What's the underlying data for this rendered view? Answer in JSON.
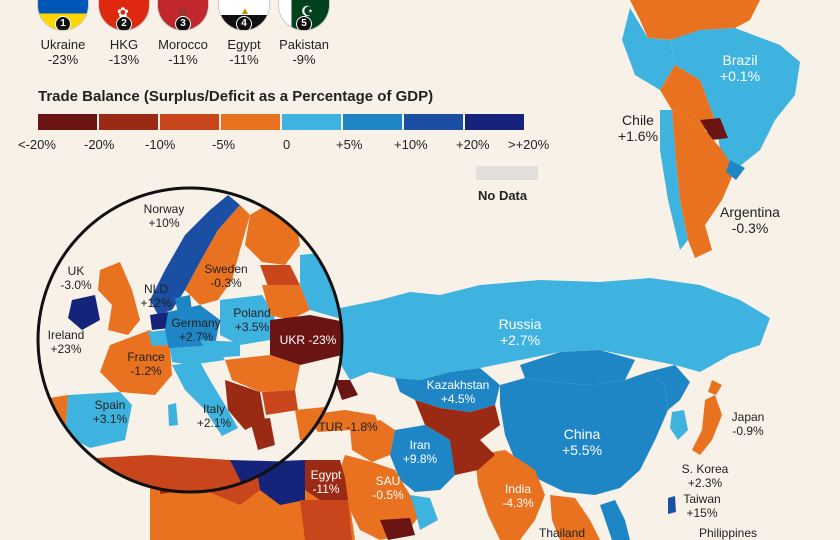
{
  "top_countries": [
    {
      "rank": "1",
      "country": "Ukraine",
      "value": "-23%",
      "flag": "ukraine-flag-icon"
    },
    {
      "rank": "2",
      "country": "HKG",
      "value": "-13%",
      "flag": "hong-kong-flag-icon"
    },
    {
      "rank": "3",
      "country": "Morocco",
      "value": "-11%",
      "flag": "morocco-flag-icon"
    },
    {
      "rank": "4",
      "country": "Egypt",
      "value": "-11%",
      "flag": "egypt-flag-icon"
    },
    {
      "rank": "5",
      "country": "Pakistan",
      "value": "-9%",
      "flag": "pakistan-flag-icon"
    }
  ],
  "legend": {
    "title": "Trade Balance (Surplus/Deficit as a Percentage of GDP)",
    "colors": [
      "#6b1414",
      "#9a2a14",
      "#c9461d",
      "#e8721f",
      "#3fb3e0",
      "#1f86c6",
      "#1a4fa3",
      "#15247a"
    ],
    "ticks": [
      "<-20%",
      "-20%",
      "-10%",
      "-5%",
      "0",
      "+5%",
      "+10%",
      "+20%",
      ">+20%"
    ],
    "no_data_label": "No Data",
    "no_data_color": "#e2dedb"
  },
  "regions": {
    "brazil": {
      "name": "Brazil",
      "value": "+0.1%"
    },
    "chile": {
      "name": "Chile",
      "value": "+1.6%"
    },
    "argentina": {
      "name": "Argentina",
      "value": "-0.3%"
    },
    "russia": {
      "name": "Russia",
      "value": "+2.7%"
    },
    "kazakhstan": {
      "name": "Kazakhstan",
      "value": "+4.5%"
    },
    "china": {
      "name": "China",
      "value": "+5.5%"
    },
    "japan": {
      "name": "Japan",
      "value": "-0.9%"
    },
    "skorea": {
      "name": "S. Korea",
      "value": "+2.3%"
    },
    "taiwan": {
      "name": "Taiwan",
      "value": "+15%"
    },
    "philippines": {
      "name": "Philippines"
    },
    "india": {
      "name": "India",
      "value": "-4.3%"
    },
    "thailand": {
      "name": "Thailand"
    },
    "iran": {
      "name": "Iran",
      "value": "+9.8%"
    },
    "sau": {
      "name": "SAU",
      "value": "-0.5%"
    },
    "egypt": {
      "name": "Egypt",
      "value": "-11%"
    },
    "tur": {
      "label": "TUR -1.8%"
    },
    "norway": {
      "name": "Norway",
      "value": "+10%"
    },
    "sweden": {
      "name": "Sweden",
      "value": "-0.3%"
    },
    "uk": {
      "name": "UK",
      "value": "-3.0%"
    },
    "nld": {
      "name": "NLD",
      "value": "+12%"
    },
    "germany": {
      "name": "Germany",
      "value": "+2.7%"
    },
    "poland": {
      "name": "Poland",
      "value": "+3.5%"
    },
    "ukr": {
      "label": "UKR -23%"
    },
    "ireland": {
      "name": "Ireland",
      "value": "+23%"
    },
    "france": {
      "name": "France",
      "value": "-1.2%"
    },
    "spain": {
      "name": "Spain",
      "value": "+3.1%"
    },
    "italy": {
      "name": "Italy",
      "value": "+2.1%"
    }
  }
}
